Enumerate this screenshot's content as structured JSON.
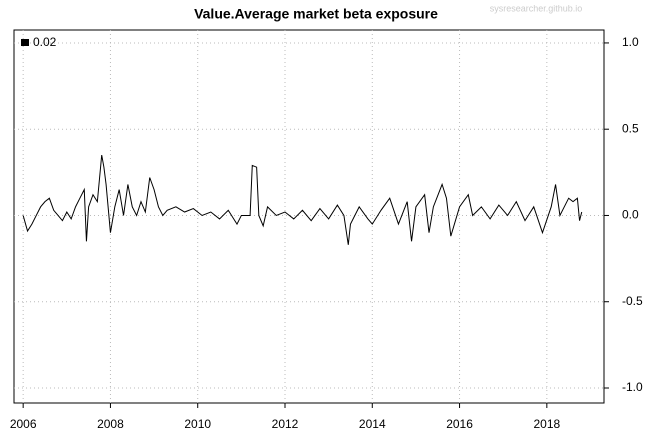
{
  "chart_data": {
    "type": "line",
    "title": "Value.Average market beta exposure",
    "watermark": "sysresearcher.github.io",
    "x": [
      2006.0,
      2006.1,
      2006.2,
      2006.3,
      2006.4,
      2006.5,
      2006.6,
      2006.7,
      2006.8,
      2006.9,
      2007.0,
      2007.1,
      2007.2,
      2007.3,
      2007.4,
      2007.45,
      2007.5,
      2007.6,
      2007.7,
      2007.8,
      2007.85,
      2007.9,
      2008.0,
      2008.1,
      2008.2,
      2008.3,
      2008.4,
      2008.5,
      2008.6,
      2008.7,
      2008.8,
      2008.9,
      2009.0,
      2009.1,
      2009.2,
      2009.3,
      2009.5,
      2009.7,
      2009.9,
      2010.1,
      2010.3,
      2010.5,
      2010.7,
      2010.9,
      2011.0,
      2011.2,
      2011.25,
      2011.35,
      2011.4,
      2011.5,
      2011.6,
      2011.8,
      2012.0,
      2012.2,
      2012.4,
      2012.6,
      2012.8,
      2013.0,
      2013.2,
      2013.35,
      2013.45,
      2013.5,
      2013.7,
      2013.9,
      2014.0,
      2014.2,
      2014.4,
      2014.6,
      2014.8,
      2014.9,
      2015.0,
      2015.2,
      2015.3,
      2015.4,
      2015.6,
      2015.7,
      2015.8,
      2016.0,
      2016.2,
      2016.3,
      2016.5,
      2016.7,
      2016.9,
      2017.1,
      2017.3,
      2017.5,
      2017.7,
      2017.9,
      2018.1,
      2018.2,
      2018.3,
      2018.5,
      2018.6,
      2018.7,
      2018.75,
      2018.8
    ],
    "series": [
      {
        "name": "0.02",
        "color": "#000000",
        "values": [
          0.0,
          -0.09,
          -0.05,
          0.0,
          0.05,
          0.08,
          0.1,
          0.03,
          0.0,
          -0.03,
          0.02,
          -0.02,
          0.05,
          0.1,
          0.15,
          -0.15,
          0.05,
          0.12,
          0.08,
          0.35,
          0.28,
          0.18,
          -0.1,
          0.05,
          0.15,
          0.0,
          0.18,
          0.05,
          0.0,
          0.08,
          0.02,
          0.22,
          0.15,
          0.05,
          0.0,
          0.03,
          0.05,
          0.02,
          0.04,
          0.0,
          0.02,
          -0.02,
          0.03,
          -0.05,
          0.0,
          0.0,
          0.29,
          0.28,
          0.0,
          -0.06,
          0.05,
          0.0,
          0.02,
          -0.02,
          0.03,
          -0.03,
          0.04,
          -0.02,
          0.06,
          0.0,
          -0.17,
          -0.05,
          0.05,
          -0.02,
          -0.05,
          0.03,
          0.1,
          -0.05,
          0.08,
          -0.15,
          0.05,
          0.12,
          -0.1,
          0.05,
          0.18,
          0.1,
          -0.12,
          0.05,
          0.12,
          0.0,
          0.05,
          -0.02,
          0.06,
          0.0,
          0.08,
          -0.03,
          0.05,
          -0.1,
          0.05,
          0.18,
          0.0,
          0.1,
          0.08,
          0.1,
          -0.03,
          0.02
        ]
      }
    ],
    "xlim": [
      2005.79,
      2019.31
    ],
    "xticks": [
      2006,
      2008,
      2010,
      2012,
      2014,
      2016,
      2018
    ],
    "ylim": [
      -1.087,
      1.075
    ],
    "yticks": [
      {
        "value": -1,
        "label": "-1.0"
      },
      -0.5,
      {
        "value": 0,
        "label": "0.0"
      },
      0.5,
      {
        "value": 1,
        "label": "1.0"
      }
    ],
    "grid": true,
    "legend": "top-left"
  }
}
